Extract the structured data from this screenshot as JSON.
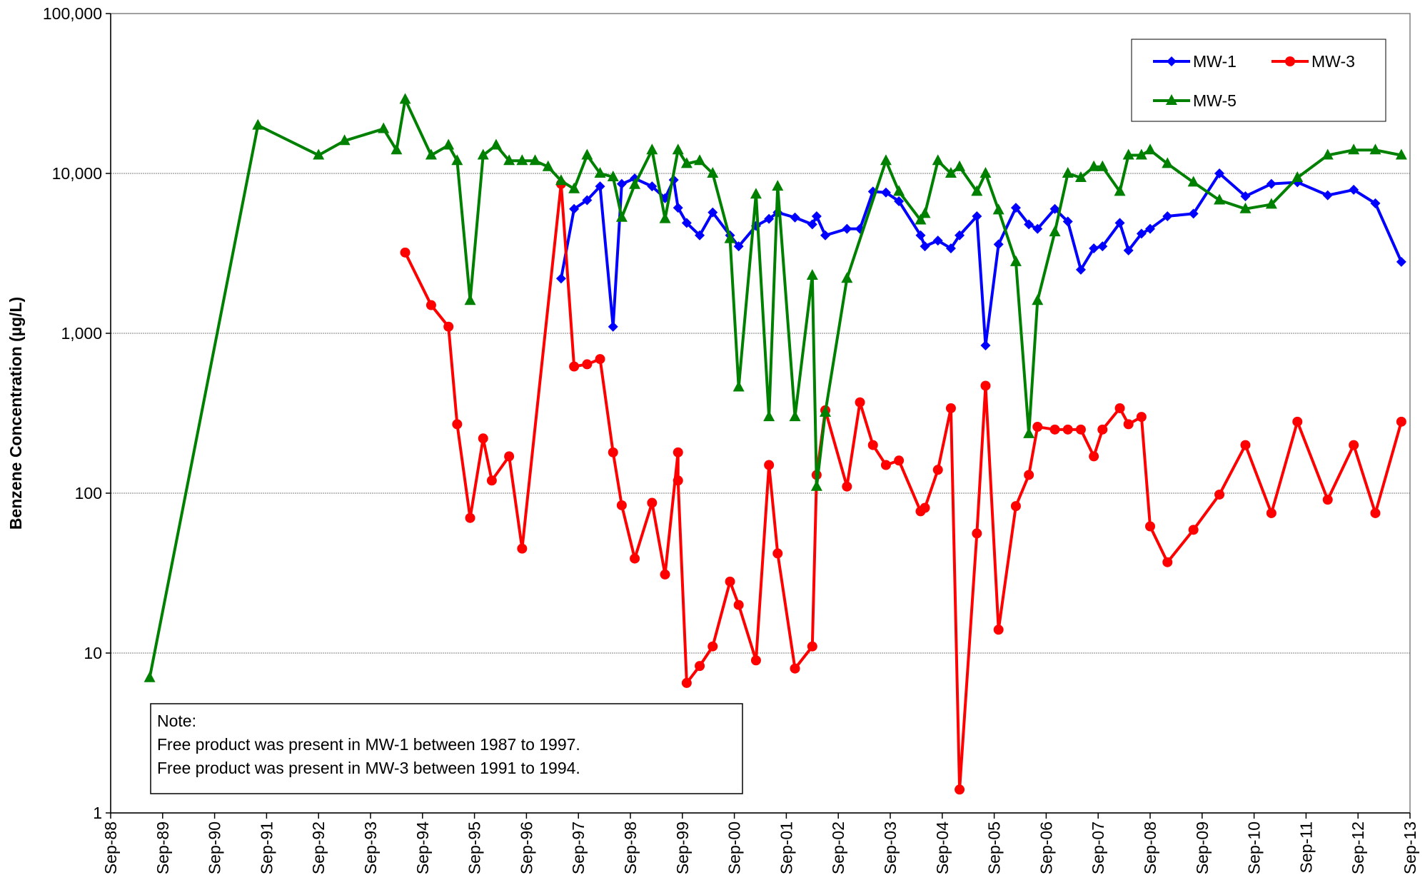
{
  "chart_data": {
    "type": "line",
    "y_label": "Benzene Concentration (µg/L)",
    "log_scale": true,
    "grid": true,
    "legend": "upper right",
    "ylim": [
      1,
      100000
    ],
    "yticks": [
      1,
      10,
      100,
      {
        "value": 1000,
        "label": "1,000"
      },
      {
        "value": 10000,
        "label": "10,000"
      },
      {
        "value": 100000,
        "label": "100,000"
      }
    ],
    "xlim": [
      "1988-09",
      "2013-09"
    ],
    "xticks": [
      {
        "value": "1988-09",
        "label": "Sep-88"
      },
      {
        "value": "1989-09",
        "label": "Sep-89"
      },
      {
        "value": "1990-09",
        "label": "Sep-90"
      },
      {
        "value": "1991-09",
        "label": "Sep-91"
      },
      {
        "value": "1992-09",
        "label": "Sep-92"
      },
      {
        "value": "1993-09",
        "label": "Sep-93"
      },
      {
        "value": "1994-09",
        "label": "Sep-94"
      },
      {
        "value": "1995-09",
        "label": "Sep-95"
      },
      {
        "value": "1996-09",
        "label": "Sep-96"
      },
      {
        "value": "1997-09",
        "label": "Sep-97"
      },
      {
        "value": "1998-09",
        "label": "Sep-98"
      },
      {
        "value": "1999-09",
        "label": "Sep-99"
      },
      {
        "value": "2000-09",
        "label": "Sep-00"
      },
      {
        "value": "2001-09",
        "label": "Sep-01"
      },
      {
        "value": "2002-09",
        "label": "Sep-02"
      },
      {
        "value": "2003-09",
        "label": "Sep-03"
      },
      {
        "value": "2004-09",
        "label": "Sep-04"
      },
      {
        "value": "2005-09",
        "label": "Sep-05"
      },
      {
        "value": "2006-09",
        "label": "Sep-06"
      },
      {
        "value": "2007-09",
        "label": "Sep-07"
      },
      {
        "value": "2008-09",
        "label": "Sep-08"
      },
      {
        "value": "2009-09",
        "label": "Sep-09"
      },
      {
        "value": "2010-09",
        "label": "Sep-10"
      },
      {
        "value": "2011-09",
        "label": "Sep-11"
      },
      {
        "value": "2012-09",
        "label": "Sep-12"
      },
      {
        "value": "2013-09",
        "label": "Sep-13"
      }
    ],
    "note": [
      "Note:",
      "Free product was present in MW-1 between 1987 to 1997.",
      "Free product was present in MW-3 between 1991 to 1994."
    ],
    "series": [
      {
        "name": "MW-1",
        "color": "#0000ff",
        "marker": "diamond",
        "x": [
          "1997-05",
          "1997-08",
          "1997-11",
          "1998-02",
          "1998-05",
          "1998-07",
          "1998-10",
          "1999-02",
          "1999-05",
          "1999-07",
          "1999-08",
          "1999-10",
          "2000-01",
          "2000-04",
          "2000-08",
          "2000-10",
          "2001-02",
          "2001-05",
          "2001-07",
          "2001-11",
          "2002-03",
          "2002-04",
          "2002-06",
          "2002-11",
          "2003-02",
          "2003-05",
          "2003-08",
          "2003-11",
          "2004-04",
          "2004-05",
          "2004-08",
          "2004-11",
          "2005-01",
          "2005-05",
          "2005-07",
          "2005-10",
          "2006-02",
          "2006-05",
          "2006-07",
          "2006-11",
          "2007-02",
          "2007-05",
          "2007-08",
          "2007-10",
          "2008-02",
          "2008-04",
          "2008-07",
          "2008-09",
          "2009-01",
          "2009-07",
          "2010-01",
          "2010-07",
          "2011-01",
          "2011-07",
          "2012-02",
          "2012-08",
          "2013-01",
          "2013-07"
        ],
        "values": [
          2200,
          6000,
          6800,
          8300,
          1100,
          8600,
          9300,
          8300,
          7000,
          9100,
          6100,
          4900,
          4100,
          5700,
          4100,
          3500,
          4700,
          5200,
          5700,
          5300,
          4800,
          5400,
          4100,
          4500,
          4500,
          7700,
          7600,
          6700,
          4100,
          3500,
          3800,
          3400,
          4100,
          5400,
          840,
          3600,
          6100,
          4800,
          4500,
          6000,
          5000,
          2500,
          3400,
          3500,
          4900,
          3300,
          4200,
          4500,
          5400,
          5600,
          10000,
          7200,
          8600,
          8800,
          7300,
          7900,
          6500,
          2800
        ]
      },
      {
        "name": "MW-3",
        "color": "#ff0000",
        "marker": "circle",
        "x": [
          "1994-05",
          "1994-11",
          "1995-03",
          "1995-05",
          "1995-08",
          "1995-11",
          "1996-01",
          "1996-05",
          "1996-08",
          "1997-05",
          "1997-08",
          "1997-11",
          "1998-02",
          "1998-05",
          "1998-07",
          "1998-10",
          "1999-02",
          "1999-05",
          "1999-08",
          "1999-08",
          "1999-10",
          "2000-01",
          "2000-04",
          "2000-08",
          "2000-10",
          "2001-02",
          "2001-05",
          "2001-07",
          "2001-11",
          "2002-03",
          "2002-04",
          "2002-06",
          "2002-11",
          "2003-02",
          "2003-05",
          "2003-08",
          "2003-11",
          "2004-04",
          "2004-05",
          "2004-08",
          "2004-11",
          "2005-01",
          "2005-05",
          "2005-07",
          "2005-10",
          "2006-02",
          "2006-05",
          "2006-07",
          "2006-11",
          "2007-02",
          "2007-05",
          "2007-08",
          "2007-10",
          "2008-02",
          "2008-04",
          "2008-07",
          "2008-09",
          "2009-01",
          "2009-07",
          "2010-01",
          "2010-07",
          "2011-01",
          "2011-07",
          "2012-02",
          "2012-08",
          "2013-01",
          "2013-07"
        ],
        "values": [
          3200,
          1500,
          1100,
          270,
          70,
          220,
          120,
          170,
          45,
          8600,
          620,
          640,
          690,
          180,
          84,
          39,
          87,
          31,
          180,
          120,
          6.5,
          8.3,
          11,
          28,
          20,
          9,
          150,
          42,
          8,
          11,
          130,
          330,
          110,
          370,
          200,
          150,
          160,
          77,
          81,
          140,
          340,
          1.4,
          56,
          470,
          14,
          83,
          130,
          260,
          250,
          250,
          250,
          170,
          250,
          340,
          270,
          300,
          62,
          37,
          59,
          98,
          200,
          75,
          280,
          91,
          200,
          75,
          280
        ]
      },
      {
        "name": "MW-5",
        "color": "#008000",
        "marker": "triangle",
        "x": [
          "1989-06",
          "1991-07",
          "1992-09",
          "1993-03",
          "1993-12",
          "1994-03",
          "1994-05",
          "1994-11",
          "1995-03",
          "1995-05",
          "1995-08",
          "1995-11",
          "1996-02",
          "1996-05",
          "1996-08",
          "1996-11",
          "1997-02",
          "1997-05",
          "1997-08",
          "1997-11",
          "1998-02",
          "1998-05",
          "1998-07",
          "1998-10",
          "1999-02",
          "1999-05",
          "1999-08",
          "1999-10",
          "2000-01",
          "2000-04",
          "2000-08",
          "2000-10",
          "2001-02",
          "2001-05",
          "2001-07",
          "2001-11",
          "2002-03",
          "2002-04",
          "2002-06",
          "2002-11",
          "2003-08",
          "2003-11",
          "2004-04",
          "2004-05",
          "2004-08",
          "2004-11",
          "2005-01",
          "2005-05",
          "2005-07",
          "2005-10",
          "2006-02",
          "2006-05",
          "2006-07",
          "2006-11",
          "2007-02",
          "2007-05",
          "2007-08",
          "2007-10",
          "2008-02",
          "2008-04",
          "2008-07",
          "2008-09",
          "2009-01",
          "2009-07",
          "2010-01",
          "2010-07",
          "2011-01",
          "2011-07",
          "2012-02",
          "2012-08",
          "2013-01",
          "2013-07"
        ],
        "values": [
          7,
          20000,
          13000,
          16000,
          19000,
          14000,
          29000,
          13000,
          15000,
          12000,
          1600,
          13000,
          15000,
          12000,
          12000,
          12000,
          11000,
          9000,
          8000,
          13000,
          10000,
          9500,
          5300,
          8500,
          14000,
          5200,
          14000,
          11500,
          12000,
          10000,
          3900,
          460,
          7400,
          300,
          8300,
          300,
          2300,
          110,
          320,
          2200,
          12000,
          7700,
          5100,
          5600,
          12000,
          10000,
          11000,
          7700,
          10000,
          5900,
          2800,
          235,
          1600,
          4300,
          10000,
          9400,
          11000,
          11000,
          7700,
          13000,
          13000,
          14000,
          11500,
          8800,
          6800,
          6000,
          6400,
          9400,
          13000,
          14000,
          14000,
          13000
        ]
      }
    ]
  }
}
